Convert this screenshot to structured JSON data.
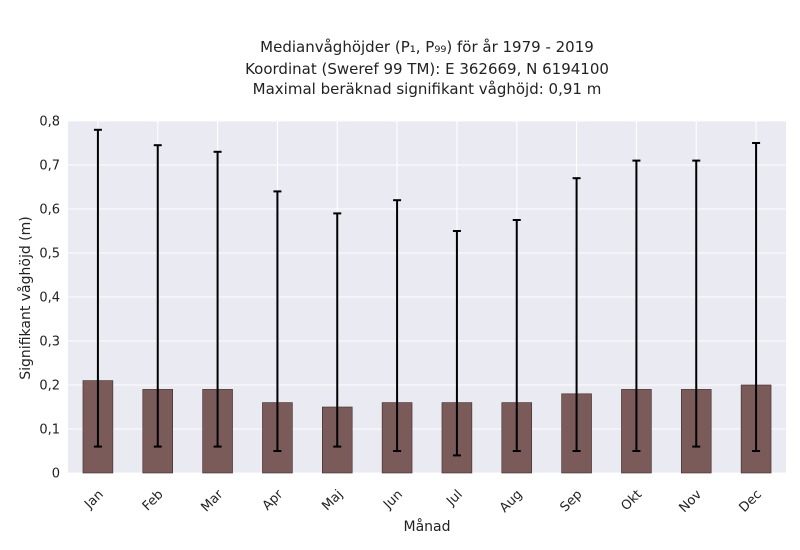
{
  "chart_data": {
    "type": "bar",
    "title_lines": [
      "Medianvåghöjder (P₁, P₉₉) för år 1979 - 2019",
      "Koordinat (Sweref 99 TM): E 362669, N 6194100",
      "Maximal beräknad signifikant våghöjd: 0,91 m"
    ],
    "xlabel": "Månad",
    "ylabel": "Signifikant våghöjd (m)",
    "categories": [
      "Jan",
      "Feb",
      "Mar",
      "Apr",
      "Maj",
      "Jun",
      "Jul",
      "Aug",
      "Sep",
      "Okt",
      "Nov",
      "Dec"
    ],
    "series": [
      {
        "values": [
          0.21,
          0.19,
          0.19,
          0.16,
          0.15,
          0.16,
          0.16,
          0.16,
          0.18,
          0.19,
          0.19,
          0.2
        ],
        "error_low": [
          0.06,
          0.06,
          0.06,
          0.05,
          0.06,
          0.05,
          0.04,
          0.05,
          0.05,
          0.05,
          0.06,
          0.05
        ],
        "error_high": [
          0.78,
          0.745,
          0.73,
          0.64,
          0.59,
          0.62,
          0.55,
          0.575,
          0.67,
          0.71,
          0.71,
          0.75
        ]
      }
    ],
    "ylim": [
      0,
      0.8
    ],
    "yticks": [
      0,
      0.1,
      0.2,
      0.3,
      0.4,
      0.5,
      0.6,
      0.7,
      0.8
    ],
    "ytick_labels": [
      "0",
      "0,1",
      "0,2",
      "0,3",
      "0,4",
      "0,5",
      "0,6",
      "0,7",
      "0,8"
    ],
    "grid": true,
    "colors": {
      "bar": "#7b5a5a",
      "bar_edge": "#3a2a2a",
      "error_bar": "#000000",
      "background": "#eaeaf2",
      "grid": "#ffffff"
    }
  }
}
